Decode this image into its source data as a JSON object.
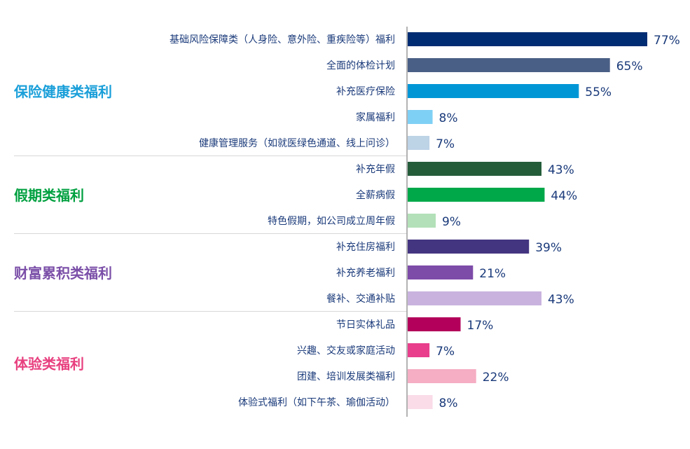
{
  "chart_data": {
    "type": "bar",
    "orientation": "horizontal",
    "unit": "%",
    "groups": [
      {
        "name": "保险健康类福利",
        "color": "#1a9fd9",
        "items": [
          {
            "label": "基础风险保障类（人身险、意外险、重疾险等）福利",
            "value": 77,
            "color": "#002c73"
          },
          {
            "label": "全面的体检计划",
            "value": 65,
            "color": "#4a5f85"
          },
          {
            "label": "补充医疗保险",
            "value": 55,
            "color": "#0096d6"
          },
          {
            "label": "家属福利",
            "value": 8,
            "color": "#7fd0f5"
          },
          {
            "label": "健康管理服务（如就医绿色通道、线上问诊）",
            "value": 7,
            "color": "#bdd3e6"
          }
        ]
      },
      {
        "name": "假期类福利",
        "color": "#00a040",
        "items": [
          {
            "label": "补充年假",
            "value": 43,
            "color": "#245c3a"
          },
          {
            "label": "全薪病假",
            "value": 44,
            "color": "#00a84a"
          },
          {
            "label": "特色假期，如公司成立周年假",
            "value": 9,
            "color": "#b3e0b8"
          }
        ]
      },
      {
        "name": "财富累积类福利",
        "color": "#7b4fa8",
        "items": [
          {
            "label": "补充住房福利",
            "value": 39,
            "color": "#443580"
          },
          {
            "label": "补充养老福利",
            "value": 21,
            "color": "#7d4ba8"
          },
          {
            "label": "餐补、交通补贴",
            "value": 43,
            "color": "#c9b3de"
          }
        ]
      },
      {
        "name": "体验类福利",
        "color": "#e8407f",
        "items": [
          {
            "label": "节日实体礼品",
            "value": 17,
            "color": "#b3005a"
          },
          {
            "label": "兴趣、交友或家庭活动",
            "value": 7,
            "color": "#e83e8c"
          },
          {
            "label": "团建、培训发展类福利",
            "value": 22,
            "color": "#f5aec3"
          },
          {
            "label": "体验式福利（如下午茶、瑜伽活动）",
            "value": 8,
            "color": "#fadbe8"
          }
        ]
      }
    ],
    "text_color": "#1a3a7a"
  }
}
